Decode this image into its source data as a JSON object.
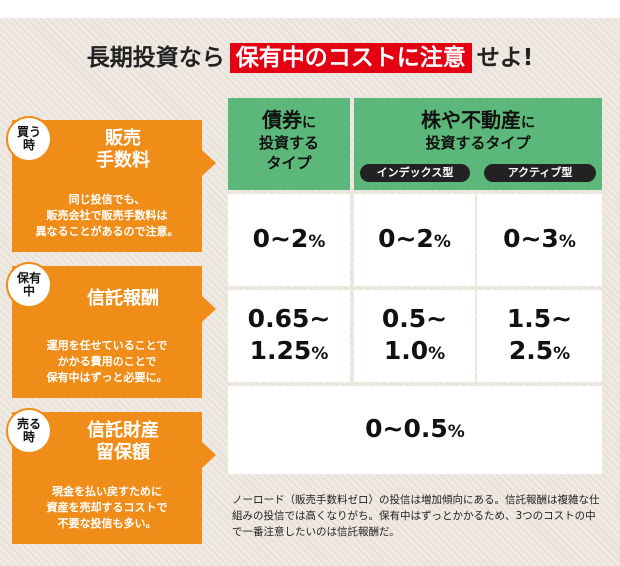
{
  "title": {
    "before": "長期投資なら",
    "highlight": "保有中のコストに注意",
    "after": "せよ!"
  },
  "columns": {
    "bond": {
      "big": "債券",
      "small": "に",
      "line2": "投資する",
      "line3": "タイプ"
    },
    "stock": {
      "big": "株や不動産",
      "small": "に",
      "line2": "投資するタイプ"
    },
    "index_label": "インデックス型",
    "active_label": "アクティブ型"
  },
  "rows": {
    "sales_fee": {
      "badge": [
        "買う",
        "時"
      ],
      "title": [
        "販売",
        "手数料"
      ],
      "desc": [
        "同じ投信でも、",
        "販売会社で販売手数料は",
        "異なることがあるので注意。"
      ],
      "bond": {
        "value": "0~2",
        "unit": "%"
      },
      "index": {
        "value": "0~2",
        "unit": "%"
      },
      "active": {
        "value": "0~3",
        "unit": "%"
      }
    },
    "trust_fee": {
      "badge": [
        "保有",
        "中"
      ],
      "title": [
        "信託報酬"
      ],
      "desc": [
        "運用を任せていることで",
        "かかる費用のことで",
        "保有中はずっと必要に。"
      ],
      "bond": {
        "line1": "0.65~",
        "value": "1.25",
        "unit": "%"
      },
      "index": {
        "line1": "0.5~",
        "value": "1.0",
        "unit": "%"
      },
      "active": {
        "line1": "1.5~",
        "value": "2.5",
        "unit": "%"
      }
    },
    "retention": {
      "badge": [
        "売る",
        "時"
      ],
      "title": [
        "信託財産",
        "留保額"
      ],
      "desc": [
        "現金を払い戻すために",
        "資産を売却するコストで",
        "不要な投信も多い。"
      ],
      "all": {
        "value": "0~0.5",
        "unit": "%"
      }
    }
  },
  "note": "ノーロード（販売手数料ゼロ）の投信は増加傾向にある。信託報酬は複雑な仕組みの投信では高くなりがち。保有中はずっとかかるため、3つのコストの中で一番注意したいのは信託報酬だ。",
  "colors": {
    "accent_red": "#e40012",
    "orange": "#f08c18",
    "green": "#5cb87a"
  }
}
